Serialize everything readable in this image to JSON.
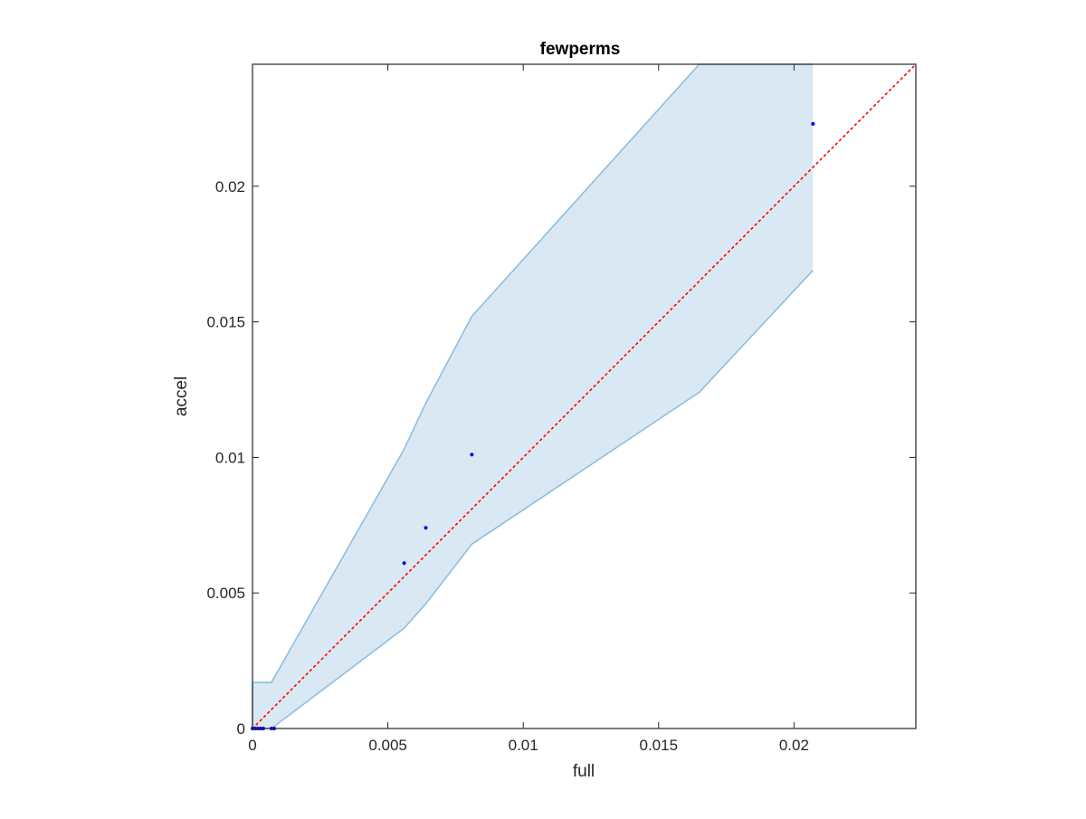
{
  "chart_data": {
    "type": "scatter",
    "title": "fewperms",
    "xlabel": "full",
    "ylabel": "accel",
    "xlim": [
      0,
      0.0245
    ],
    "ylim": [
      0,
      0.0245
    ],
    "xticks": [
      0,
      0.005,
      0.01,
      0.015,
      0.02
    ],
    "xtick_labels": [
      "0",
      "0.005",
      "0.01",
      "0.015",
      "0.02"
    ],
    "yticks": [
      0,
      0.005,
      0.01,
      0.015,
      0.02
    ],
    "ytick_labels": [
      "0",
      "0.005",
      "0.01",
      "0.015",
      "0.02"
    ],
    "grid": false,
    "points": {
      "x": [
        0,
        0.0001,
        0.0002,
        0.0003,
        0.0004,
        0.0007,
        0.0008,
        0.0056,
        0.0064,
        0.0081,
        0.0207
      ],
      "y": [
        0,
        0,
        0,
        0,
        0,
        0,
        0,
        0.0061,
        0.0074,
        0.0101,
        0.0223
      ],
      "color": "#0000ff"
    },
    "band": {
      "x": [
        0,
        0.0007,
        0.0056,
        0.0064,
        0.0081,
        0.0165,
        0.0207
      ],
      "upper": [
        0.0017,
        0.0017,
        0.0103,
        0.012,
        0.0152,
        0.0245,
        0.0245
      ],
      "lower": [
        0,
        0,
        0.0037,
        0.0046,
        0.0068,
        0.0124,
        0.0169
      ],
      "fill_color": "#dae8f4",
      "line_color": "#8dbfe0"
    },
    "reference_line": {
      "x": [
        0,
        0.0245
      ],
      "y": [
        0,
        0.0245
      ],
      "style": "dotted",
      "color": "#ff0000"
    }
  }
}
